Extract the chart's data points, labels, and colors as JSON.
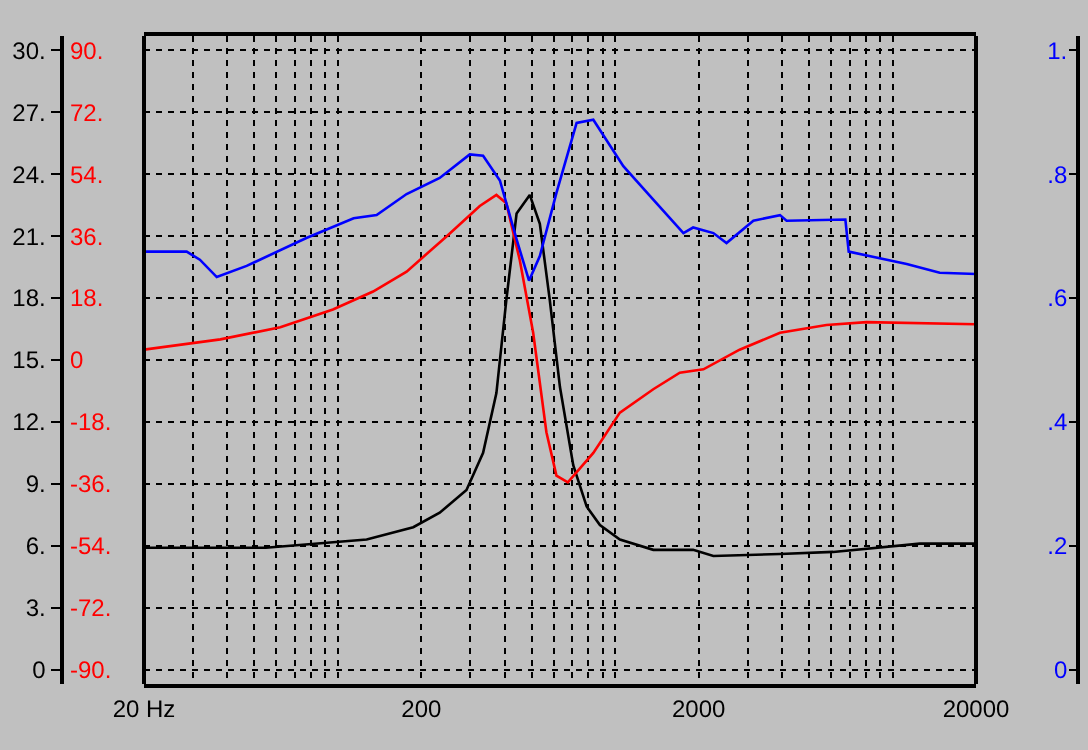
{
  "chart_data": {
    "type": "line",
    "log": "x",
    "grid": true,
    "marker": "none",
    "line_style": "solid",
    "xlim": [
      20,
      20000
    ],
    "xticks": [
      {
        "value": 20,
        "label": "20 Hz"
      },
      200,
      2000,
      20000
    ],
    "ylim": [
      -0.7,
      30.7
    ],
    "yticks": [
      {
        "value": 0,
        "label": "0"
      },
      {
        "value": 3,
        "label": "3."
      },
      {
        "value": 6,
        "label": "6."
      },
      {
        "value": 9,
        "label": "9."
      },
      {
        "value": 12,
        "label": "12."
      },
      {
        "value": 15,
        "label": "15."
      },
      {
        "value": 18,
        "label": "18."
      },
      {
        "value": 21,
        "label": "21."
      },
      {
        "value": 24,
        "label": "24."
      },
      {
        "value": 27,
        "label": "27."
      },
      {
        "value": 30,
        "label": "30."
      }
    ],
    "y2lim": [
      -94.2,
      94.2
    ],
    "y2ticks": [
      {
        "value": -90,
        "label": "-90."
      },
      {
        "value": -72,
        "label": "-72."
      },
      {
        "value": -54,
        "label": "-54."
      },
      {
        "value": -36,
        "label": "-36."
      },
      {
        "value": -18,
        "label": "-18."
      },
      {
        "value": 0,
        "label": "0"
      },
      {
        "value": 18,
        "label": "18."
      },
      {
        "value": 36,
        "label": "36."
      },
      {
        "value": 54,
        "label": "54."
      },
      {
        "value": 72,
        "label": "72."
      },
      {
        "value": 90,
        "label": "90."
      }
    ],
    "y3lim": [
      -0.0233,
      1.0233
    ],
    "y3ticks": [
      {
        "value": 0,
        "label": "0"
      },
      {
        "value": 0.2,
        "label": ".2"
      },
      {
        "value": 0.4,
        "label": ".4"
      },
      {
        "value": 0.6,
        "label": ".6"
      },
      {
        "value": 0.8,
        "label": ".8"
      },
      {
        "value": 1,
        "label": "1."
      }
    ],
    "series": [
      {
        "color": "#0000ff",
        "axis": "y3",
        "x": [
          20,
          28.5,
          31.8,
          36.6,
          46.9,
          77,
          114,
          138,
          177,
          233,
          299,
          334,
          384,
          441,
          489,
          535,
          614,
          726,
          834,
          1070,
          1372,
          1762,
          1910,
          2260,
          2520,
          3150,
          3930,
          4150,
          6760,
          6950,
          11250,
          14800,
          20000
        ],
        "values": [
          0.675,
          0.675,
          0.662,
          0.634,
          0.652,
          0.697,
          0.729,
          0.734,
          0.768,
          0.794,
          0.832,
          0.83,
          0.79,
          0.695,
          0.628,
          0.668,
          0.77,
          0.883,
          0.888,
          0.813,
          0.759,
          0.705,
          0.714,
          0.705,
          0.689,
          0.725,
          0.734,
          0.725,
          0.727,
          0.675,
          0.655,
          0.641,
          0.639
        ]
      },
      {
        "color": "#ff0000",
        "axis": "y2",
        "x": [
          20,
          37.7,
          62,
          96,
          134,
          177,
          247,
          325,
          373,
          405,
          453,
          506,
          565,
          614,
          675,
          834,
          1040,
          1372,
          1710,
          2080,
          2810,
          3930,
          5780,
          8060,
          20000
        ],
        "values": [
          3,
          6,
          9.5,
          14.7,
          19.9,
          25.7,
          36,
          44.8,
          48,
          45.6,
          29,
          8,
          -21,
          -33.6,
          -35.6,
          -27,
          -15.3,
          -8.5,
          -3.7,
          -2.7,
          3,
          7.9,
          10.2,
          11,
          10.4
        ]
      },
      {
        "color": "#000000",
        "axis": "y",
        "x": [
          20,
          55,
          127,
          187,
          233,
          291,
          334,
          373,
          405,
          441,
          492,
          535,
          581,
          632,
          706,
          789,
          881,
          1040,
          1372,
          1910,
          2260,
          3930,
          6110,
          12540,
          20000
        ],
        "values": [
          5.9,
          5.9,
          6.3,
          6.9,
          7.6,
          8.7,
          10.5,
          13.4,
          17.9,
          22.1,
          23.0,
          21.6,
          17.9,
          13.7,
          9.9,
          7.9,
          7.0,
          6.3,
          5.8,
          5.8,
          5.5,
          5.6,
          5.7,
          6.1,
          6.1
        ]
      }
    ]
  }
}
